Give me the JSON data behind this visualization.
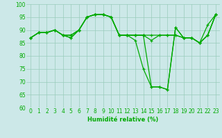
{
  "xlabel": "Humidité relative (%)",
  "xlim": [
    -0.5,
    23.5
  ],
  "ylim": [
    60,
    100
  ],
  "yticks": [
    60,
    65,
    70,
    75,
    80,
    85,
    90,
    95,
    100
  ],
  "xticks": [
    0,
    1,
    2,
    3,
    4,
    5,
    6,
    7,
    8,
    9,
    10,
    11,
    12,
    13,
    14,
    15,
    16,
    17,
    18,
    19,
    20,
    21,
    22,
    23
  ],
  "background_color": "#cce8e8",
  "grid_color": "#99ccbb",
  "line_color": "#00aa00",
  "lines": [
    [
      87,
      89,
      89,
      90,
      88,
      88,
      90,
      95,
      96,
      96,
      95,
      88,
      88,
      88,
      88,
      88,
      88,
      88,
      88,
      87,
      87,
      85,
      88,
      96
    ],
    [
      87,
      89,
      89,
      90,
      88,
      88,
      90,
      95,
      96,
      96,
      95,
      88,
      88,
      88,
      88,
      86,
      88,
      88,
      88,
      87,
      87,
      85,
      92,
      96
    ],
    [
      87,
      89,
      89,
      90,
      88,
      87,
      90,
      95,
      96,
      96,
      95,
      88,
      88,
      86,
      75,
      68,
      68,
      67,
      91,
      87,
      87,
      85,
      88,
      96
    ],
    [
      87,
      89,
      89,
      90,
      88,
      87,
      90,
      95,
      96,
      96,
      95,
      88,
      88,
      88,
      88,
      68,
      68,
      67,
      91,
      87,
      87,
      85,
      88,
      96
    ]
  ],
  "xlabel_fontsize": 6,
  "tick_fontsize": 5.5,
  "linewidth": 0.9,
  "markersize": 3.0
}
